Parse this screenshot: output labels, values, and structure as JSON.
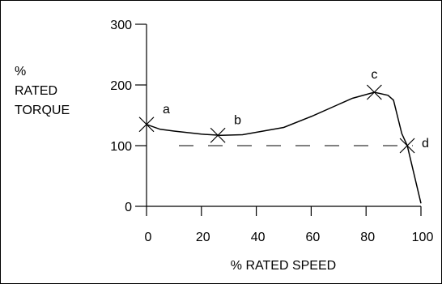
{
  "chart_data": {
    "type": "line",
    "title": "",
    "xlabel": "% RATED SPEED",
    "ylabel_lines": [
      "%",
      "RATED",
      "TORQUE"
    ],
    "xlim": [
      0,
      100
    ],
    "ylim": [
      0,
      300
    ],
    "xticks": [
      0,
      20,
      40,
      60,
      80,
      100
    ],
    "yticks": [
      0,
      100,
      200,
      300
    ],
    "grid": false,
    "series": [
      {
        "x": [
          0,
          5,
          10,
          20,
          27,
          35,
          50,
          60,
          70,
          75,
          83,
          88,
          90,
          93,
          95,
          100
        ],
        "y": [
          135,
          127,
          124,
          119,
          117,
          118,
          130,
          148,
          168,
          178,
          188,
          183,
          175,
          120,
          100,
          5
        ]
      }
    ],
    "reference_line": {
      "y": 100,
      "style": "dashed",
      "x_range": [
        0,
        100
      ]
    },
    "markers": [
      {
        "label": "a",
        "x": 0,
        "y": 135
      },
      {
        "label": "b",
        "x": 26,
        "y": 117
      },
      {
        "label": "c",
        "x": 83,
        "y": 188
      },
      {
        "label": "d",
        "x": 95,
        "y": 100
      }
    ]
  }
}
